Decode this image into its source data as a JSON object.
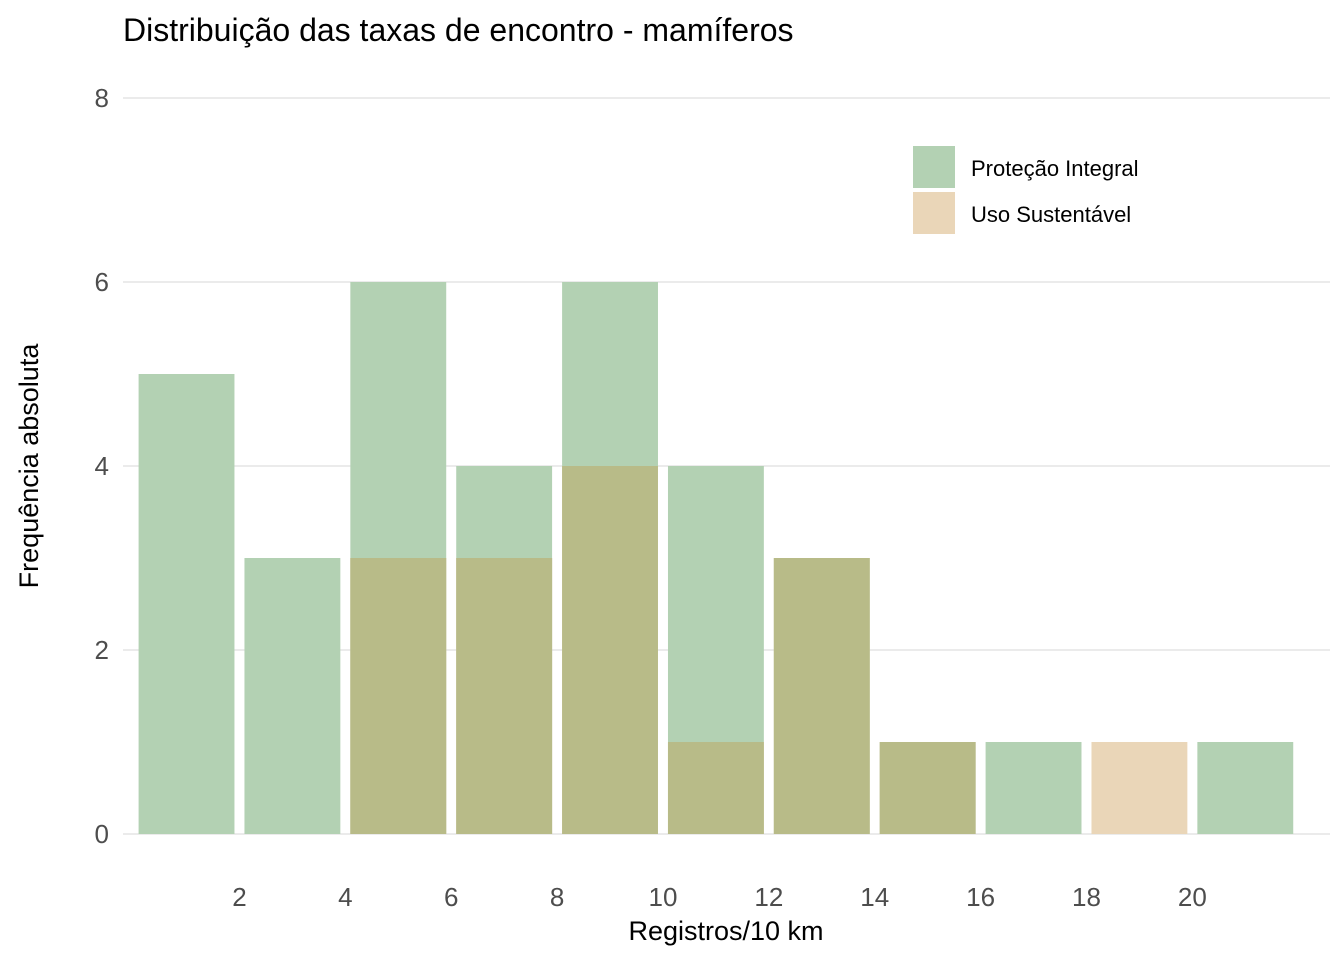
{
  "chart_data": {
    "type": "bar",
    "title": "Distribuição das taxas de encontro - mamíferos",
    "xlabel": "Registros/10 km",
    "ylabel": "Frequência absoluta",
    "xlim": [
      -0.2,
      22.6
    ],
    "ylim": [
      0,
      8
    ],
    "x_ticks": [
      2,
      4,
      6,
      8,
      10,
      12,
      14,
      16,
      18,
      20
    ],
    "y_ticks": [
      0,
      2,
      4,
      6,
      8
    ],
    "bin_width": 2,
    "bin_starts": [
      0,
      2,
      4,
      6,
      8,
      10,
      12,
      14,
      16,
      18,
      20
    ],
    "grid": "horizontal",
    "legend_position": "top-right",
    "bar_overlay": "overlapping, semi-transparent",
    "series": [
      {
        "name": "Proteção Integral",
        "color": "#b3d1b3",
        "values": [
          5,
          3,
          6,
          4,
          6,
          4,
          3,
          1,
          1,
          0,
          1
        ]
      },
      {
        "name": "Uso Sustentável",
        "color": "#ead6b8",
        "values": [
          0,
          0,
          3,
          3,
          4,
          1,
          3,
          1,
          0,
          1,
          0
        ]
      }
    ],
    "overlap_color": "#b8bb88"
  }
}
